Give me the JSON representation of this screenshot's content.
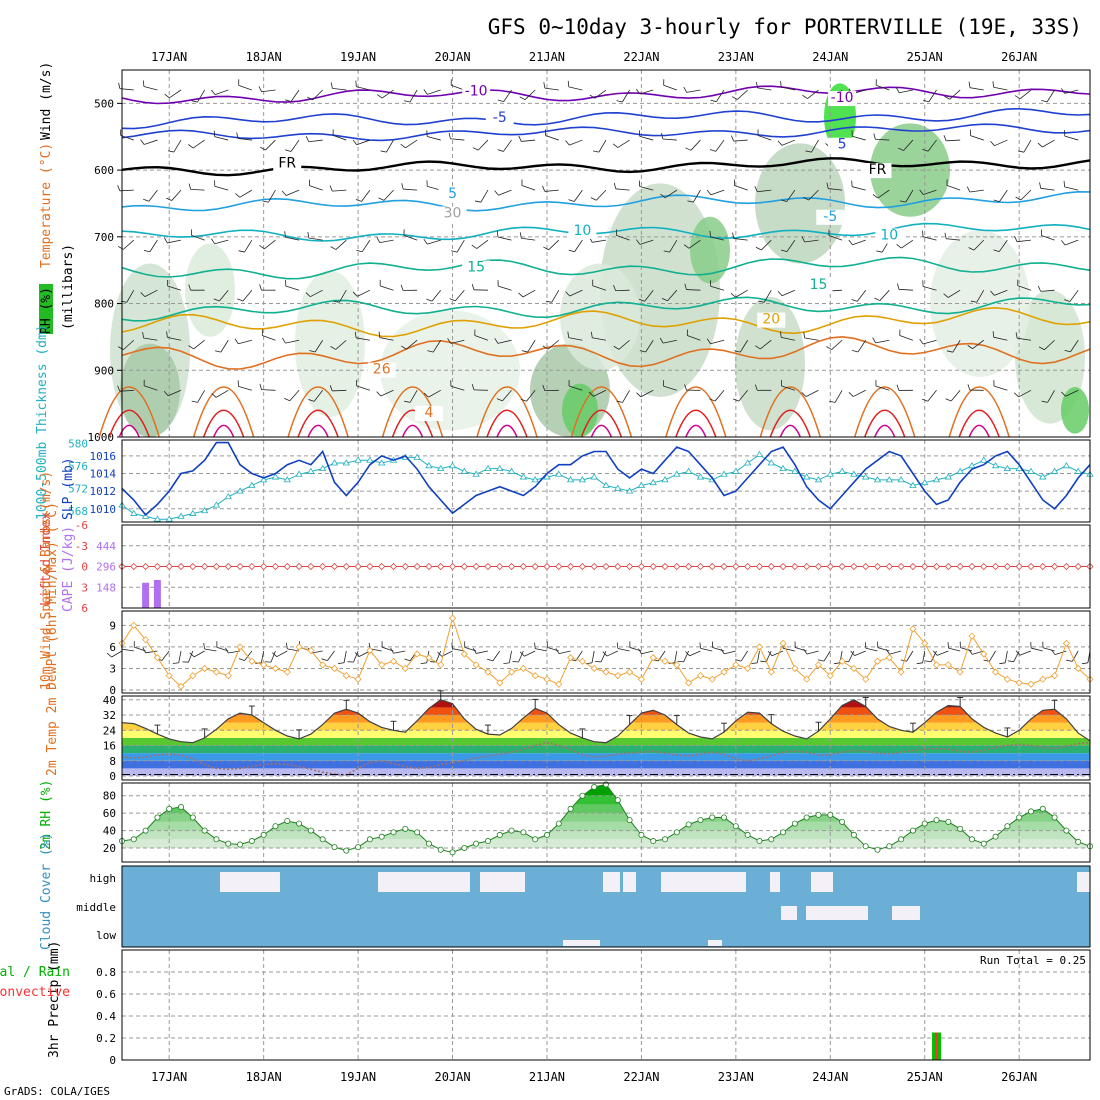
{
  "title": "GFS 0~10day 3-hourly for PORTERVILLE (19E, 33S)",
  "credit": "GrADS: COLA/IGES",
  "dates": [
    "17JAN",
    "18JAN",
    "19JAN",
    "20JAN",
    "21JAN",
    "22JAN",
    "23JAN",
    "24JAN",
    "25JAN",
    "26JAN"
  ],
  "colors": {
    "rh": "#00c800",
    "temp": "#e07020",
    "wind": "#0000c0",
    "cape": "#b070f0",
    "li": "#e04040",
    "thick": "#20b0c0",
    "slp": "#1040c0",
    "wspd": "#f0a030",
    "precip_total": "#00c000",
    "precip_conv": "#ff3030",
    "cloud": "#6baed6"
  },
  "chart_data": [
    {
      "type": "area",
      "panel": "upper-air",
      "ylabel_parts": [
        "RH (%)",
        "Temperature (°C)",
        "Wind (m/s)"
      ],
      "ylabel2": "(millibars)",
      "ylim": [
        1000,
        450
      ],
      "yticks": [
        500,
        600,
        700,
        800,
        900,
        1000
      ],
      "contour_labels": [
        {
          "text": "-10",
          "t": 30,
          "p": 488,
          "color": "#7000b0"
        },
        {
          "text": "-5",
          "t": 32,
          "p": 528,
          "color": "#2040d0"
        },
        {
          "text": "FR",
          "t": 14,
          "p": 596,
          "color": "#000000"
        },
        {
          "text": "5",
          "t": 28,
          "p": 642,
          "color": "#20a0e0"
        },
        {
          "text": "10",
          "t": 39,
          "p": 697,
          "color": "#10b0c0"
        },
        {
          "text": "15",
          "t": 30,
          "p": 752,
          "color": "#10b090"
        },
        {
          "text": "26",
          "t": 22,
          "p": 905,
          "color": "#e07020"
        },
        {
          "text": "4",
          "t": 26,
          "p": 970,
          "color": "#e07020"
        },
        {
          "text": "-10",
          "t": 61,
          "p": 498,
          "color": "#7000b0"
        },
        {
          "text": "5",
          "t": 61,
          "p": 568,
          "color": "#2040d0"
        },
        {
          "text": "FR",
          "t": 64,
          "p": 606,
          "color": "#000000"
        },
        {
          "text": "-5",
          "t": 60,
          "p": 676,
          "color": "#20a0e0"
        },
        {
          "text": "10",
          "t": 65,
          "p": 704,
          "color": "#10b0c0"
        },
        {
          "text": "15",
          "t": 59,
          "p": 778,
          "color": "#10b090"
        },
        {
          "text": "20",
          "t": 55,
          "p": 830,
          "color": "#e0a000"
        },
        {
          "text": "30",
          "t": 28,
          "p": 671,
          "color": "#a0a0a0"
        }
      ]
    },
    {
      "type": "line",
      "panel": "slp-thickness",
      "ylabel": "1000-500mb Thickness (dm)",
      "ylabel2": "SLP (mb)",
      "yticks_left": [
        568,
        572,
        576,
        580
      ],
      "yticks_right": [
        1010,
        1012,
        1014,
        1016
      ],
      "series": [
        {
          "name": "SLP (mb)",
          "values": [
            1012.3,
            1011.0,
            1009.3,
            1010.5,
            1012.0,
            1014.0,
            1014.3,
            1015.5,
            1017.5,
            1017.5,
            1015.0,
            1014.0,
            1013.5,
            1014.0,
            1015.0,
            1015.5,
            1015.0,
            1016.5,
            1013.0,
            1011.5,
            1013.0,
            1015.0,
            1016.0,
            1015.5,
            1016.0,
            1014.5,
            1012.5,
            1011.0,
            1009.5,
            1010.5,
            1011.5,
            1012.0,
            1012.5,
            1012.0,
            1011.5,
            1012.5,
            1014.0,
            1015.0,
            1015.0,
            1016.0,
            1016.5,
            1016.5,
            1014.5,
            1013.5,
            1014.5,
            1014.0,
            1015.5,
            1017.0,
            1016.5,
            1015.0,
            1013.5,
            1011.5,
            1012.0,
            1013.5,
            1015.0,
            1016.5,
            1017.0,
            1015.0,
            1012.5,
            1011.0,
            1010.0,
            1011.5,
            1013.0,
            1014.5,
            1015.5,
            1016.5,
            1016.0,
            1014.0,
            1012.0,
            1010.5,
            1011.0,
            1013.0,
            1014.5,
            1015.0,
            1016.0,
            1016.5,
            1015.0,
            1013.0,
            1011.0,
            1010.0,
            1011.5,
            1013.5,
            1015.0
          ],
          "color": "#1040c0"
        },
        {
          "name": "Thickness (dm)",
          "values": [
            569.0,
            567.5,
            567.0,
            566.5,
            566.5,
            567.0,
            567.5,
            568.0,
            569.0,
            570.5,
            571.5,
            572.5,
            573.5,
            574.0,
            573.5,
            574.5,
            575.0,
            575.5,
            576.5,
            576.5,
            577.0,
            577.0,
            576.5,
            577.0,
            577.5,
            577.5,
            576.0,
            575.5,
            576.0,
            575.0,
            574.5,
            575.5,
            575.5,
            575.0,
            574.0,
            573.5,
            574.0,
            574.5,
            573.5,
            573.5,
            574.0,
            572.5,
            572.0,
            571.5,
            572.5,
            573.0,
            573.5,
            574.5,
            575.0,
            574.0,
            573.5,
            574.5,
            575.0,
            576.5,
            578.0,
            576.5,
            575.5,
            575.0,
            574.0,
            573.5,
            574.5,
            575.0,
            574.5,
            574.0,
            573.5,
            573.5,
            573.5,
            572.5,
            573.0,
            573.5,
            574.0,
            575.0,
            576.0,
            577.0,
            576.0,
            575.5,
            575.5,
            575.0,
            574.0,
            575.0,
            576.0,
            575.0,
            574.5
          ],
          "color": "#20b0c0"
        }
      ]
    },
    {
      "type": "bar",
      "panel": "cape-li",
      "ylabel": "Lifted Index",
      "ylabel2": "CAPE (J/kg)",
      "yticks_left": [
        -6,
        -3,
        0,
        3,
        6
      ],
      "yticks_right": [
        148,
        296,
        444
      ],
      "series": [
        {
          "name": "CAPE (J/kg)",
          "values": [
            0,
            0,
            180,
            200,
            0,
            0,
            0,
            0,
            0,
            0,
            0,
            0,
            0,
            0,
            0,
            0,
            0,
            0,
            0,
            0,
            0,
            0,
            0,
            0,
            0,
            0,
            0,
            0,
            0,
            0,
            0,
            0,
            0,
            0,
            0,
            0,
            0,
            0,
            0,
            0,
            0,
            0,
            0,
            0,
            0,
            0,
            0,
            0,
            0,
            0,
            0,
            0,
            0,
            0,
            0,
            0,
            0,
            0,
            0,
            0,
            0,
            0,
            0,
            0,
            0,
            0,
            0,
            0,
            0,
            0,
            0,
            0,
            0,
            0,
            0,
            0,
            0,
            0,
            0,
            0,
            0,
            0,
            0
          ],
          "color": "#b070f0"
        },
        {
          "name": "Lifted Index",
          "values": [
            0,
            0,
            0,
            0,
            0,
            0,
            0,
            0,
            0,
            0,
            0,
            0,
            0,
            0,
            0,
            0,
            0,
            0,
            0,
            0,
            0,
            0,
            0,
            0,
            0,
            0,
            0,
            0,
            0,
            0,
            0,
            0,
            0,
            0,
            0,
            0,
            0,
            0,
            0,
            0,
            0,
            0,
            0,
            0,
            0,
            0,
            0,
            0,
            0,
            0,
            0,
            0,
            0,
            0,
            0,
            0,
            0,
            0,
            0,
            0,
            0,
            0,
            0,
            0,
            0,
            0,
            0,
            0,
            0,
            0,
            0,
            0,
            0,
            0,
            0,
            0,
            0,
            0,
            0,
            0,
            0,
            0,
            0
          ],
          "color": "#e04040"
        }
      ]
    },
    {
      "type": "line",
      "panel": "wind10m",
      "ylabel": "10m Wind Speed & Barbs (m/s)",
      "yticks": [
        0,
        3,
        6,
        9
      ],
      "series": [
        {
          "name": "10m Wind Speed",
          "values": [
            6.5,
            9.0,
            7.0,
            4.5,
            2.0,
            0.5,
            2.0,
            3.0,
            2.5,
            2.0,
            6.0,
            4.0,
            3.5,
            3.0,
            2.5,
            6.0,
            5.5,
            3.5,
            3.0,
            2.0,
            1.5,
            5.5,
            3.5,
            4.0,
            3.0,
            5.0,
            4.5,
            3.5,
            10.0,
            5.0,
            3.5,
            2.5,
            1.0,
            2.5,
            3.0,
            2.0,
            1.5,
            0.8,
            4.5,
            4.0,
            3.0,
            2.5,
            2.0,
            2.5,
            1.5,
            4.5,
            4.0,
            3.5,
            1.0,
            2.0,
            1.5,
            2.5,
            3.5,
            3.0,
            6.0,
            2.5,
            6.5,
            3.0,
            1.5,
            3.5,
            2.0,
            4.0,
            3.0,
            1.5,
            4.0,
            4.5,
            2.5,
            8.5,
            6.5,
            3.5,
            3.5,
            2.5,
            7.5,
            5.0,
            2.5,
            1.5,
            1.0,
            0.8,
            1.5,
            2.0,
            6.5,
            3.0,
            1.5
          ],
          "color": "#f0a030"
        }
      ]
    },
    {
      "type": "area",
      "panel": "temperature2m",
      "ylabel": "2m Temp 2m DewPt (6hr Min/Max) (°C)",
      "yticks": [
        0,
        8,
        16,
        24,
        32,
        40
      ],
      "series": [
        {
          "name": "2m Temp",
          "values": [
            28.0,
            27.5,
            25.0,
            22.0,
            19.5,
            18.0,
            17.5,
            20.0,
            24.5,
            30.0,
            33.0,
            32.0,
            28.0,
            24.0,
            21.0,
            19.5,
            22.0,
            27.0,
            33.0,
            35.0,
            33.0,
            28.5,
            25.5,
            24.0,
            23.0,
            29.0,
            35.5,
            40.0,
            38.0,
            30.0,
            24.5,
            22.0,
            21.5,
            25.0,
            30.5,
            35.5,
            33.0,
            27.0,
            22.5,
            20.0,
            18.0,
            17.5,
            21.0,
            27.0,
            33.0,
            34.5,
            32.0,
            27.0,
            22.5,
            20.5,
            19.5,
            23.0,
            29.0,
            33.5,
            33.0,
            27.5,
            23.5,
            21.0,
            19.5,
            23.5,
            30.0,
            37.0,
            40.0,
            36.5,
            30.0,
            26.0,
            24.0,
            23.0,
            28.0,
            33.5,
            37.0,
            36.5,
            30.0,
            25.5,
            22.5,
            20.5,
            24.0,
            30.0,
            34.5,
            35.0,
            30.0,
            22.5,
            18.5
          ],
          "color": "#e07020"
        },
        {
          "name": "2m DewPt",
          "values": [
            10.0,
            9.5,
            10.0,
            11.0,
            11.5,
            11.0,
            9.0,
            6.0,
            4.0,
            3.5,
            4.0,
            5.0,
            6.0,
            6.5,
            6.0,
            5.0,
            3.5,
            2.0,
            1.0,
            0.5,
            4.0,
            7.0,
            8.0,
            6.5,
            5.0,
            4.0,
            4.5,
            6.0,
            7.0,
            8.0,
            9.5,
            10.5,
            11.5,
            12.5,
            14.0,
            16.0,
            17.5,
            16.0,
            14.0,
            11.0,
            10.0,
            10.5,
            11.5,
            12.0,
            12.5,
            13.0,
            12.0,
            11.0,
            10.5,
            11.5,
            12.5,
            11.5,
            9.0,
            8.0,
            9.0,
            10.5,
            12.5,
            13.0,
            12.5,
            11.0,
            11.0,
            12.5,
            13.5,
            13.0,
            12.0,
            11.5,
            12.5,
            13.5,
            14.0,
            14.5,
            14.0,
            13.0,
            12.5,
            13.5,
            15.0,
            16.0,
            16.5,
            16.0,
            15.0,
            14.5,
            15.5,
            17.0,
            17.5
          ],
          "color": "#606060"
        }
      ]
    },
    {
      "type": "area",
      "panel": "rh2m",
      "ylabel": "2m RH (%)",
      "yticks": [
        20,
        40,
        60,
        80
      ],
      "series": [
        {
          "name": "2m RH",
          "values": [
            28.0,
            30.0,
            40.0,
            55.0,
            65.0,
            67.0,
            55.0,
            40.0,
            30.0,
            25.0,
            24.0,
            28.0,
            35.0,
            45.0,
            51.0,
            48.0,
            40.0,
            30.0,
            21.0,
            17.0,
            21.0,
            30.0,
            33.0,
            38.0,
            42.0,
            38.0,
            25.0,
            18.0,
            15.0,
            20.0,
            25.0,
            28.0,
            35.0,
            40.0,
            38.0,
            30.0,
            35.0,
            48.0,
            65.0,
            80.0,
            90.0,
            93.0,
            75.0,
            52.0,
            35.0,
            28.0,
            30.0,
            38.0,
            47.0,
            52.0,
            55.0,
            55.0,
            45.0,
            35.0,
            28.0,
            30.0,
            38.0,
            48.0,
            55.0,
            58.0,
            58.0,
            50.0,
            35.0,
            22.0,
            18.0,
            22.0,
            30.0,
            40.0,
            48.0,
            52.0,
            50.0,
            42.0,
            30.0,
            25.0,
            33.0,
            45.0,
            55.0,
            62.0,
            65.0,
            55.0,
            40.0,
            27.0,
            22.0
          ],
          "color": "#00c800"
        }
      ]
    },
    {
      "type": "heatmap",
      "panel": "cloud-cover",
      "ylabel": "Cloud Cover (%)",
      "levels": [
        "high",
        "middle",
        "low"
      ]
    },
    {
      "type": "bar",
      "panel": "precip",
      "ylabel": "3hr Precip (mm)",
      "ylabel_parts": [
        "Total / Rain",
        "Convective"
      ],
      "run_total_label": "Run Total = 0.25",
      "yticks": [
        0,
        0.2,
        0.4,
        0.6,
        0.8
      ],
      "series": [
        {
          "name": "Total",
          "values": [
            0,
            0,
            0,
            0,
            0,
            0,
            0,
            0,
            0,
            0,
            0,
            0,
            0,
            0,
            0,
            0,
            0,
            0,
            0,
            0,
            0,
            0,
            0,
            0,
            0,
            0,
            0,
            0,
            0,
            0,
            0,
            0,
            0,
            0,
            0,
            0,
            0,
            0,
            0,
            0,
            0,
            0,
            0,
            0,
            0,
            0,
            0,
            0,
            0,
            0,
            0,
            0,
            0,
            0,
            0,
            0,
            0,
            0,
            0,
            0,
            0,
            0,
            0,
            0,
            0,
            0,
            0,
            0,
            0,
            0.25,
            0,
            0,
            0,
            0,
            0,
            0,
            0,
            0,
            0,
            0,
            0,
            0,
            0
          ],
          "color": "#00c000"
        },
        {
          "name": "Convective",
          "values": [
            0,
            0,
            0,
            0,
            0,
            0,
            0,
            0,
            0,
            0,
            0,
            0,
            0,
            0,
            0,
            0,
            0,
            0,
            0,
            0,
            0,
            0,
            0,
            0,
            0,
            0,
            0,
            0,
            0,
            0,
            0,
            0,
            0,
            0,
            0,
            0,
            0,
            0,
            0,
            0,
            0,
            0,
            0,
            0,
            0,
            0,
            0,
            0,
            0,
            0,
            0,
            0,
            0,
            0,
            0,
            0,
            0,
            0,
            0,
            0,
            0,
            0,
            0,
            0,
            0,
            0,
            0,
            0,
            0,
            0.25,
            0,
            0,
            0,
            0,
            0,
            0,
            0,
            0,
            0,
            0,
            0,
            0,
            0
          ],
          "color": "#ff3030"
        }
      ]
    }
  ]
}
